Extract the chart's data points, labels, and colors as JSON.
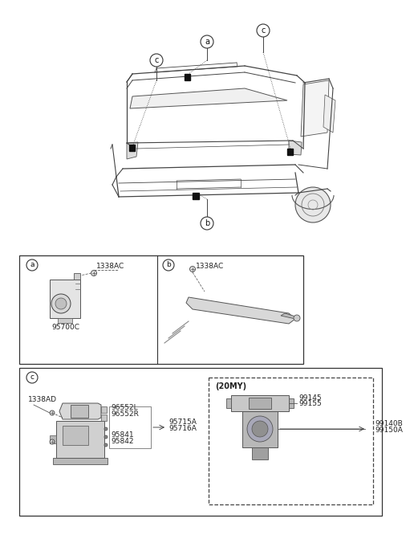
{
  "bg_color": "#ffffff",
  "line_color": "#555555",
  "dark_color": "#222222",
  "light_gray": "#e8e8e8",
  "mid_gray": "#cccccc",
  "dark_gray": "#888888",
  "border_lw": 0.9,
  "part_labels": {
    "a_bolt": "1338AC",
    "a_part": "95700C",
    "b_bolt": "1338AC",
    "c_bolt": "1338AD",
    "c_top_right": "96552L\n96552R",
    "c_mid_right": "95841\n95842",
    "c_far_right": "95715A\n95716A",
    "c_20my_label": "(20MY)",
    "c_20my_top": "99145\n99155",
    "c_20my_right": "99140B\n99150A"
  },
  "callout_labels": [
    "a",
    "b",
    "c"
  ],
  "font_size": 7,
  "font_size_small": 6.5
}
